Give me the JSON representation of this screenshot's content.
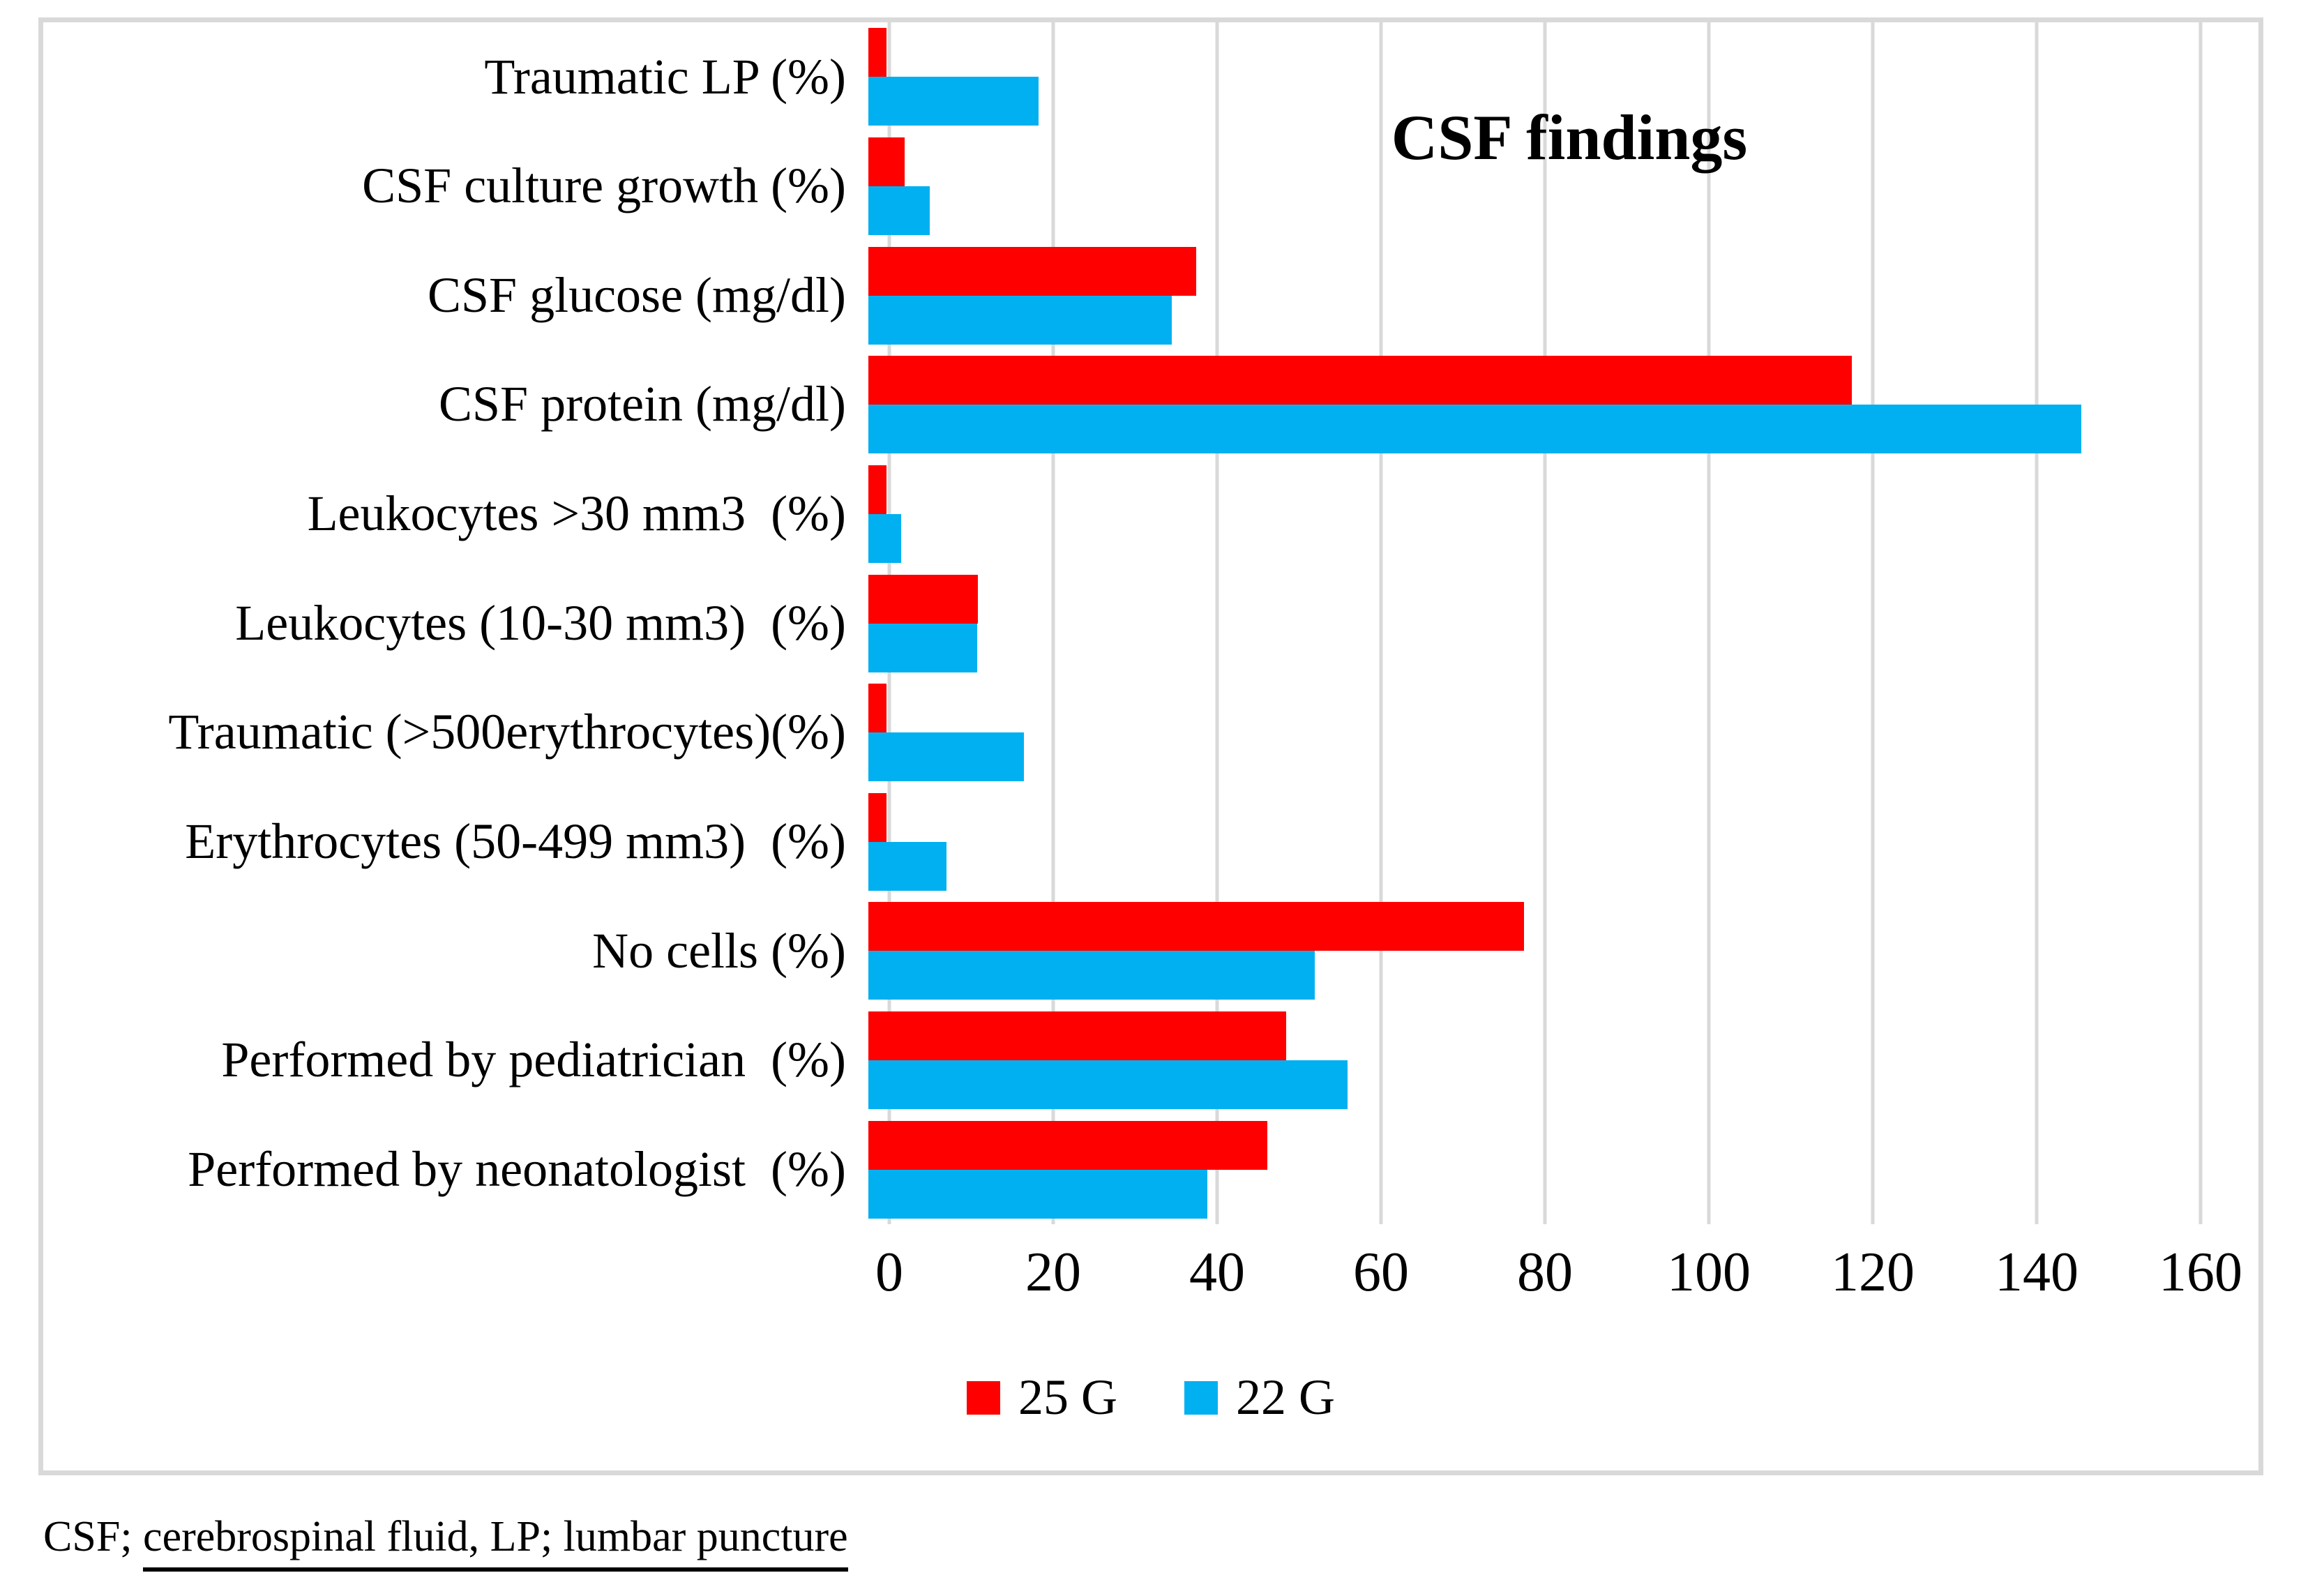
{
  "chart_data": {
    "type": "bar",
    "orientation": "horizontal",
    "title": "CSF findings",
    "categories": [
      "Traumatic LP (%)",
      "CSF culture growth (%)",
      "CSF glucose (mg/dl)",
      "CSF protein (mg/dl)",
      "Leukocytes >30 mm3  (%)",
      "Leukocytes (10-30 mm3)  (%)",
      "Traumatic (>500erythrocytes)(%)",
      "Erythrocytes (50-499 mm3)  (%)",
      "No cells (%)",
      "Performed by pediatrician  (%)",
      "Performed by neonatologist  (%)"
    ],
    "series": [
      {
        "name": "25 G",
        "color": "#FF0000",
        "values": [
          2.2,
          4.4,
          40,
          120,
          2.2,
          13.4,
          2.2,
          2.2,
          80,
          51,
          48.7
        ]
      },
      {
        "name": "22 G",
        "color": "#00B0F0",
        "values": [
          20.8,
          7.5,
          37,
          148,
          4,
          13.3,
          19,
          9.5,
          54.5,
          58.5,
          41.4
        ]
      }
    ],
    "xlim": [
      0,
      160
    ],
    "xticks": [
      0,
      20,
      40,
      60,
      80,
      100,
      120,
      140,
      160
    ],
    "grid": "vertical-gridlines",
    "legend_position": "bottom-center"
  },
  "footnote": {
    "prefix": "CSF; ",
    "underlined": "cerebrospinal fluid, LP; lumbar puncture"
  },
  "colors": {
    "gridline": "#D9D9D9",
    "frame_border": "#D9D9D9",
    "background": "#FFFFFF",
    "text": "#000000"
  }
}
